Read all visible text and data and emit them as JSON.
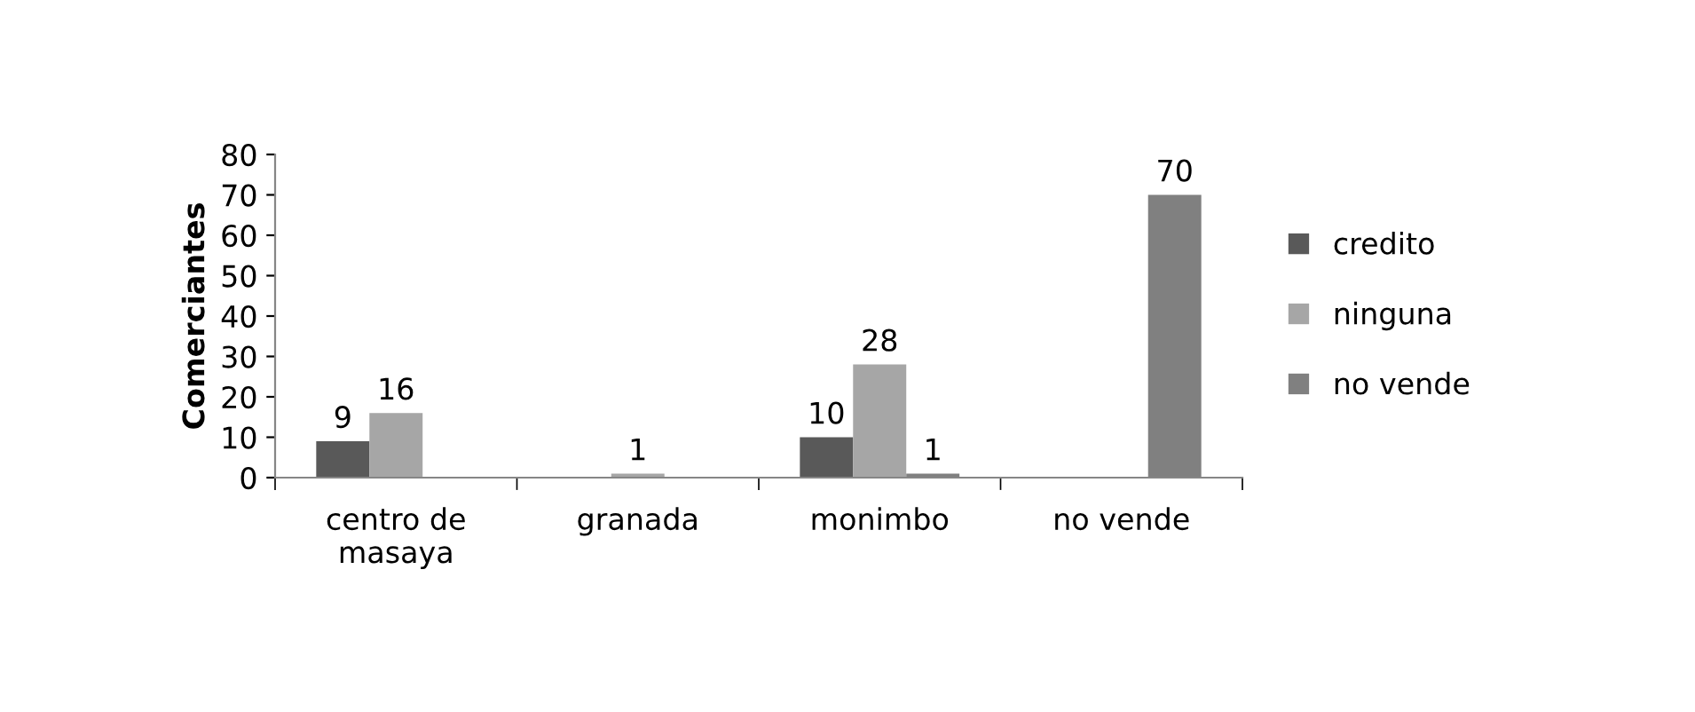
{
  "chart_data": {
    "type": "bar",
    "ylabel": "Comerciantes",
    "categories": [
      "centro de\nmasaya",
      "granada",
      "monimbo",
      "no vende"
    ],
    "series": [
      {
        "name": "credito",
        "color": "#595959",
        "values": [
          9,
          null,
          10,
          null
        ]
      },
      {
        "name": "ninguna",
        "color": "#a6a6a6",
        "values": [
          16,
          1,
          28,
          null
        ]
      },
      {
        "name": "no vende",
        "color": "#808080",
        "values": [
          null,
          null,
          1,
          70
        ]
      }
    ],
    "ylim": [
      0,
      80
    ],
    "yticks": [
      0,
      10,
      20,
      30,
      40,
      50,
      60,
      70,
      80
    ],
    "grid": false,
    "legend": "right",
    "data_labels": true
  }
}
